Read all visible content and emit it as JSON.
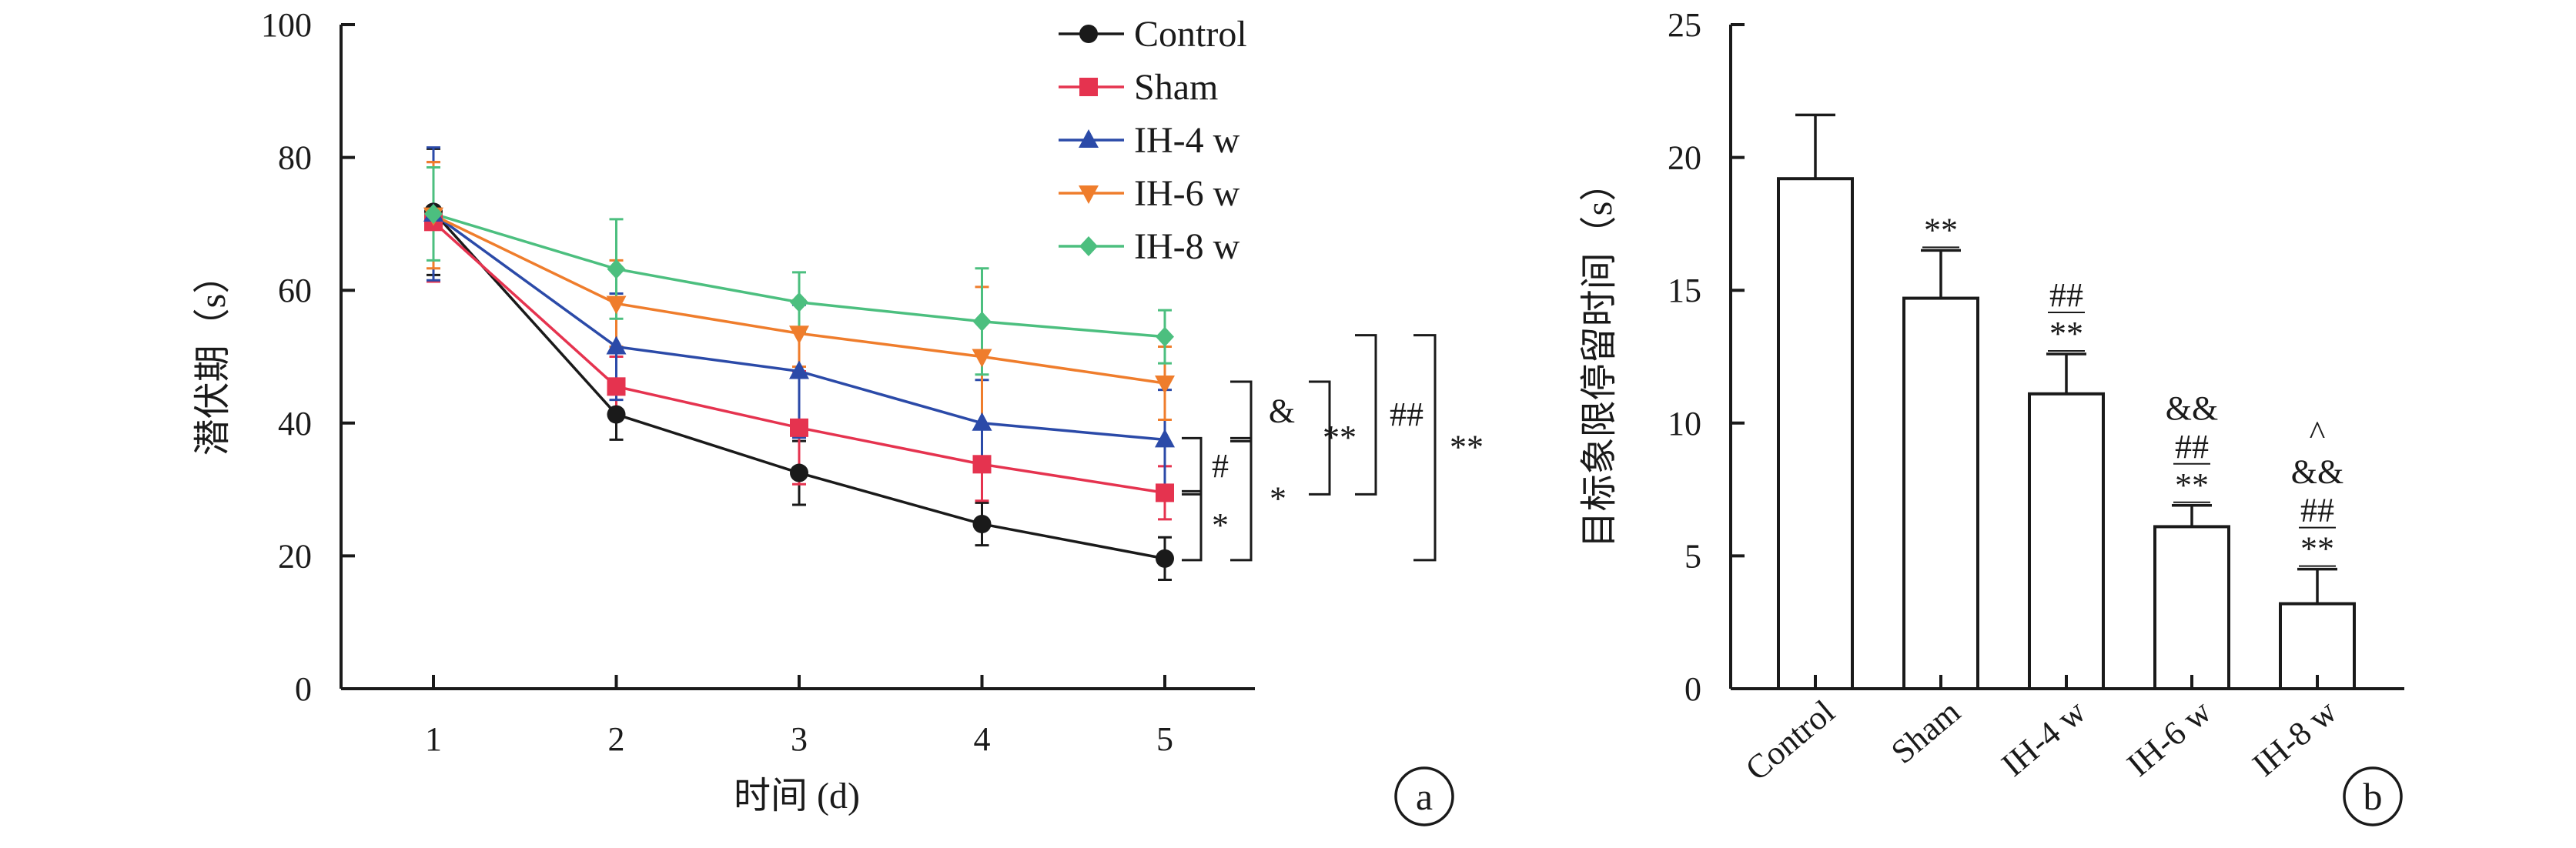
{
  "chart_data": [
    {
      "type": "line",
      "panel_label": "a",
      "xlabel": "时间 (d)",
      "ylabel": "潜伏期（s）",
      "x": [
        1,
        2,
        3,
        4,
        5
      ],
      "x_ticks": [
        "1",
        "2",
        "3",
        "4",
        "5"
      ],
      "ylim": [
        0,
        100
      ],
      "y_ticks": [
        "0",
        "20",
        "40",
        "60",
        "80",
        "100"
      ],
      "grid": false,
      "legend_position": "top-right",
      "series": [
        {
          "name": "Control",
          "color": "#1a1a1a",
          "marker": "circle",
          "values": [
            71.8,
            41.3,
            32.5,
            24.8,
            19.6
          ],
          "errors": [
            9.5,
            3.8,
            4.8,
            3.2,
            3.2
          ]
        },
        {
          "name": "Sham",
          "color": "#e5334f",
          "marker": "square",
          "values": [
            70.3,
            45.5,
            39.3,
            33.8,
            29.5
          ],
          "errors": [
            9.0,
            4.5,
            8.5,
            5.5,
            4.0
          ]
        },
        {
          "name": "IH-4 w",
          "color": "#2b4aa8",
          "marker": "triangle-up",
          "values": [
            71.5,
            51.5,
            47.8,
            40.0,
            37.5
          ],
          "errors": [
            10.0,
            8.0,
            10.0,
            6.5,
            7.5
          ]
        },
        {
          "name": "IH-6 w",
          "color": "#ef7d2c",
          "marker": "triangle-down",
          "values": [
            71.3,
            58.0,
            53.5,
            50.0,
            46.0
          ],
          "errors": [
            8.0,
            6.5,
            5.0,
            10.5,
            5.5
          ]
        },
        {
          "name": "IH-8 w",
          "color": "#4cbf7f",
          "marker": "diamond",
          "values": [
            71.5,
            63.2,
            58.2,
            55.3,
            53.0
          ],
          "errors": [
            7.0,
            7.5,
            4.5,
            8.0,
            4.0
          ]
        }
      ],
      "significance": [
        {
          "label": "#",
          "from_series": "IH-4 w",
          "to_series": "Sham"
        },
        {
          "label": "*",
          "from_series": "Sham",
          "to_series": "Control"
        },
        {
          "label": "&",
          "from_series": "IH-6 w",
          "to_series": "IH-4 w"
        },
        {
          "label": "*",
          "from_series": "IH-4 w",
          "to_series": "Control"
        },
        {
          "label": "**",
          "from_series": "IH-6 w",
          "to_series": "Sham"
        },
        {
          "label": "##",
          "from_series": "IH-8 w",
          "to_series": "Sham"
        },
        {
          "label": "**",
          "from_series": "IH-8 w",
          "to_series": "Control"
        }
      ]
    },
    {
      "type": "bar",
      "panel_label": "b",
      "xlabel": "",
      "ylabel": "目标象限停留时间（s）",
      "categories": [
        "Control",
        "Sham",
        "IH-4 w",
        "IH-6 w",
        "IH-8 w"
      ],
      "values": [
        19.2,
        14.7,
        11.1,
        6.1,
        3.2
      ],
      "errors": [
        2.4,
        1.8,
        1.5,
        0.8,
        1.3
      ],
      "ylim": [
        0,
        25
      ],
      "y_ticks": [
        "0",
        "5",
        "10",
        "15",
        "20",
        "25"
      ],
      "grid": false,
      "bar_annotations": [
        [],
        [
          "**"
        ],
        [
          "**",
          "##"
        ],
        [
          "**",
          "##",
          "&&"
        ],
        [
          "**",
          "##",
          "&&",
          "^"
        ]
      ]
    }
  ]
}
